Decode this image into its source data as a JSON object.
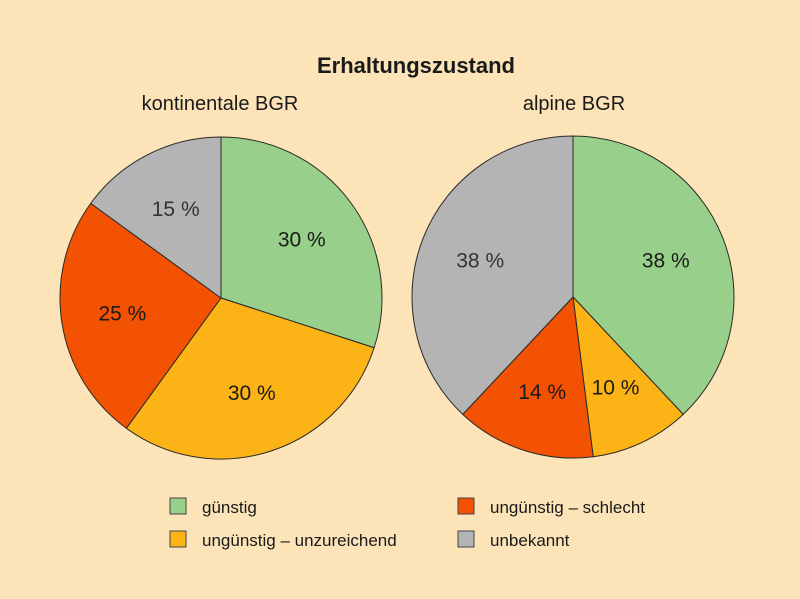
{
  "chart_data": {
    "type": "pie",
    "title": "Erhaltungszustand",
    "legend": {
      "placement": "bottom",
      "entries": [
        {
          "label": "günstig",
          "color": "#98cf8a"
        },
        {
          "label": "ungünstig – unzureichend",
          "color": "#fbb316"
        },
        {
          "label": "ungünstig – schlecht",
          "color": "#f25201"
        },
        {
          "label": "unbekannt",
          "color": "#b4b4b4"
        }
      ]
    },
    "charts": [
      {
        "subtitle": "kontinentale BGR",
        "slices": [
          {
            "category": "günstig",
            "value": 30,
            "label": "30 %",
            "color": "#98cf8a"
          },
          {
            "category": "ungünstig – unzureichend",
            "value": 30,
            "label": "30 %",
            "color": "#fbb316"
          },
          {
            "category": "ungünstig – schlecht",
            "value": 25,
            "label": "25 %",
            "color": "#f25201"
          },
          {
            "category": "unbekannt",
            "value": 15,
            "label": "15 %",
            "color": "#b4b4b4"
          }
        ]
      },
      {
        "subtitle": "alpine BGR",
        "slices": [
          {
            "category": "günstig",
            "value": 38,
            "label": "38 %",
            "color": "#98cf8a"
          },
          {
            "category": "ungünstig – unzureichend",
            "value": 10,
            "label": "10 %",
            "color": "#fbb316"
          },
          {
            "category": "ungünstig – schlecht",
            "value": 14,
            "label": "14 %",
            "color": "#f25201"
          },
          {
            "category": "unbekannt",
            "value": 38,
            "label": "38 %",
            "color": "#b4b4b4"
          }
        ]
      }
    ]
  }
}
